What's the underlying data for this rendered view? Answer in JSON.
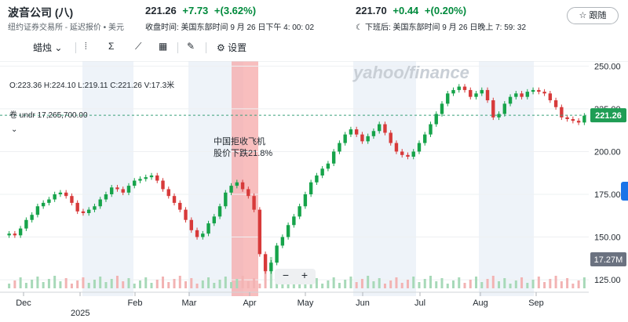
{
  "header": {
    "company": "波音公司 (八)",
    "exchange": "纽约证券交易所 - 延迟报价 • 美元",
    "regular": {
      "price": "221.26",
      "change": "+7.73",
      "pct": "+(3.62%)",
      "time": "收盘时间: 美国东部时间 9 月 26 日下午 4: 00: 02"
    },
    "after": {
      "price": "221.70",
      "change": "+0.44",
      "pct": "+(0.20%)",
      "time": "下班后: 美国东部时间 9 月 26 日晚上 7: 59: 32"
    },
    "follow_label": "☆ 跟随"
  },
  "toolbar": {
    "candle_label": "蜡烛",
    "settings_label": "设置"
  },
  "ohlc_text": "O:223.36  H:224.10  L:219.11  C:221.26  V:17.3米",
  "volume_text": "卷 undr  17,265,700.00",
  "annotation": {
    "line1": "中国拒收飞机",
    "line2": "股价下跌21.8%"
  },
  "watermark": "yahoo/finance",
  "year_label": "2025",
  "colors": {
    "up": "#16a34a",
    "down": "#d73a3a",
    "accent": "#1a73e8",
    "highlight": "#f6a8a8"
  },
  "chart_data": {
    "type": "candlestick",
    "x_labels": [
      "Dec",
      "Feb",
      "Mar",
      "Apr",
      "May",
      "Jun",
      "Jul",
      "Aug",
      "Sep"
    ],
    "y_ticks": [
      125,
      150,
      175,
      200,
      225,
      250
    ],
    "ylim": [
      120,
      252
    ],
    "price_badge": "221.26",
    "volume_badge": "17.27M",
    "closes": [
      152,
      151,
      155,
      160,
      163,
      168,
      170,
      172,
      175,
      176,
      174,
      170,
      165,
      164,
      166,
      168,
      172,
      175,
      179,
      178,
      176,
      180,
      183,
      184,
      185,
      186,
      183,
      178,
      174,
      170,
      166,
      160,
      154,
      150,
      152,
      158,
      162,
      168,
      176,
      180,
      182,
      178,
      174,
      166,
      140,
      130,
      135,
      145,
      150,
      157,
      162,
      168,
      175,
      182,
      186,
      190,
      193,
      200,
      205,
      210,
      213,
      210,
      206,
      209,
      212,
      216,
      211,
      205,
      200,
      198,
      197,
      200,
      205,
      210,
      216,
      222,
      228,
      234,
      236,
      238,
      236,
      232,
      234,
      236,
      230,
      220,
      222,
      228,
      232,
      234,
      232,
      235,
      236,
      235,
      234,
      230,
      226,
      220,
      219,
      218,
      217,
      221
    ]
  }
}
